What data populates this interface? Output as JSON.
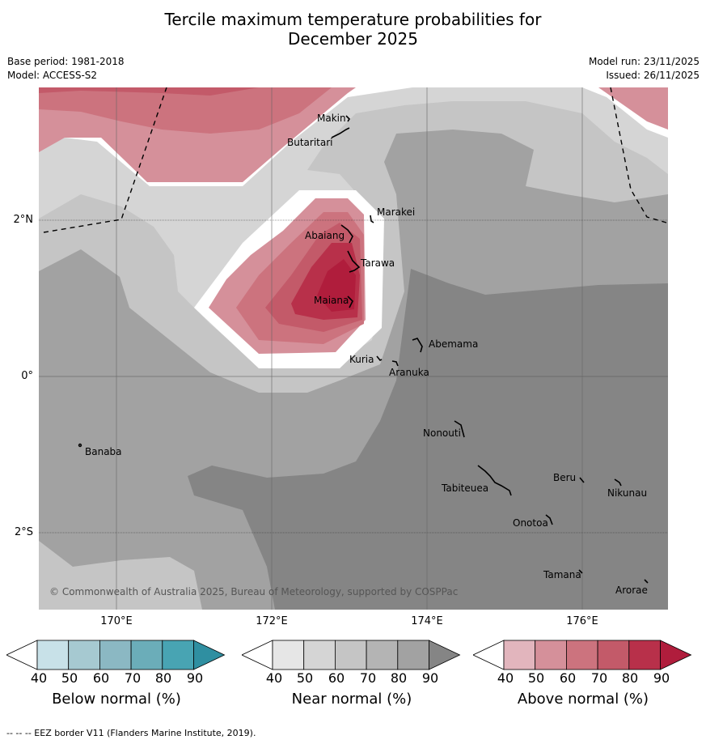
{
  "title_line1": "Tercile maximum temperature probabilities for",
  "title_line2": "December 2025",
  "base_period": "Base period: 1981-2018",
  "model": "Model: ACCESS-S2",
  "model_run": "Model run: 23/11/2025",
  "issued": "Issued: 26/11/2025",
  "copyright": "© Commonwealth of Australia 2025, Bureau of Meteorology, supported by COSPPac",
  "footnote": "--  --  -- EEZ border V11 (Flanders Marine Institute, 2019).",
  "lat_labels": [
    "2°N",
    "0°",
    "2°S"
  ],
  "lon_labels": [
    "170°E",
    "172°E",
    "174°E",
    "176°E"
  ],
  "places": [
    "Makin",
    "Butaritari",
    "Marakei",
    "Abaiang",
    "Tarawa",
    "Maiana",
    "Abemama",
    "Kuria",
    "Aranuka",
    "Nonouti",
    "Banaba",
    "Beru",
    "Nikunau",
    "Tabiteuea",
    "Onotoa",
    "Tamana",
    "Arorae"
  ],
  "colorbars": [
    {
      "title": "Below normal (%)",
      "ticks": [
        "40",
        "50",
        "60",
        "70",
        "80",
        "90"
      ],
      "colors": [
        "#ffffff",
        "#c8e1e8",
        "#a6c9d1",
        "#8bb8c3",
        "#6badb9",
        "#48a4b3",
        "#2f8fa1"
      ]
    },
    {
      "title": "Near normal (%)",
      "ticks": [
        "40",
        "50",
        "60",
        "70",
        "80",
        "90"
      ],
      "colors": [
        "#ffffff",
        "#e6e6e6",
        "#d5d5d5",
        "#c5c5c5",
        "#b4b4b4",
        "#a2a2a2",
        "#858585"
      ]
    },
    {
      "title": "Above normal (%)",
      "ticks": [
        "40",
        "50",
        "60",
        "70",
        "80",
        "90"
      ],
      "colors": [
        "#ffffff",
        "#e2b5bd",
        "#d5909a",
        "#cc737e",
        "#c35a69",
        "#b8304a",
        "#b01d3c"
      ]
    }
  ]
}
